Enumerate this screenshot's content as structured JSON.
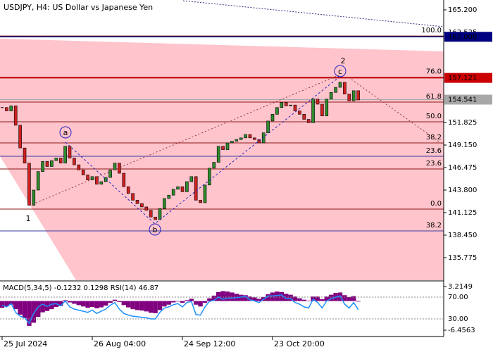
{
  "chart_data": {
    "type": "candlestick",
    "title": "USDJPY, H4:  US Dollar vs Japanese Yen",
    "up_color": "#2e8b2e",
    "down_color": "#d02020",
    "close": [
      153.6,
      153.2,
      153.8,
      151.5,
      148.8,
      147.0,
      142.0,
      143.8,
      146.0,
      147.2,
      146.6,
      147.3,
      147.6,
      147.0,
      149.0,
      147.6,
      146.8,
      146.2,
      145.6,
      145.0,
      145.4,
      144.5,
      144.8,
      145.3,
      146.2,
      147.0,
      145.8,
      144.2,
      143.4,
      142.6,
      142.2,
      141.8,
      141.4,
      140.6,
      140.3,
      141.6,
      142.8,
      143.2,
      143.9,
      144.2,
      143.6,
      144.8,
      145.4,
      142.6,
      142.3,
      144.4,
      146.4,
      147.1,
      149.0,
      148.6,
      149.4,
      149.6,
      149.8,
      150.0,
      150.4,
      150.0,
      149.8,
      149.4,
      150.6,
      152.0,
      152.8,
      153.6,
      154.2,
      153.8,
      153.9,
      153.2,
      152.8,
      152.2,
      151.8,
      154.6,
      154.0,
      152.6,
      154.6,
      155.4,
      156.0,
      156.6,
      155.2,
      154.4,
      155.6,
      154.5
    ],
    "xlim": [
      -0.47,
      97.97
    ],
    "xticks": [
      {
        "value": 0,
        "label": "25 Jul 2024"
      },
      {
        "value": 20,
        "label": "26 Aug 04:00"
      },
      {
        "value": 40,
        "label": "24 Sep 12:00"
      },
      {
        "value": 60,
        "label": "23 Oct 20:00"
      }
    ],
    "ylim": [
      133.1,
      166.37
    ],
    "yticks": [
      {
        "value": 165.2,
        "label": "165.200"
      },
      {
        "value": 162.525,
        "label": "162.525"
      },
      {
        "value": 151.825,
        "label": "151.825"
      },
      {
        "value": 149.15,
        "label": "149.150"
      },
      {
        "value": 146.475,
        "label": "146.475"
      },
      {
        "value": 143.8,
        "label": "143.800"
      },
      {
        "value": 141.125,
        "label": "141.125"
      },
      {
        "value": 138.45,
        "label": "138.450"
      },
      {
        "value": 135.775,
        "label": "135.775"
      }
    ],
    "price_lines": [
      {
        "value": 162.0,
        "label": "162.000",
        "color": "#000080"
      },
      {
        "value": 157.121,
        "label": "157.121",
        "color": "#cc0000"
      },
      {
        "value": 154.541,
        "label": "154.541",
        "color": "#a8a8a8"
      }
    ],
    "fib_levels": [
      {
        "value": 162.1,
        "label": "100.0",
        "color": "#8b1a1a"
      },
      {
        "value": 157.2,
        "label": "76.0",
        "color": "#8b1a1a"
      },
      {
        "value": 154.25,
        "label": "61.8",
        "color": "#8b1a1a"
      },
      {
        "value": 151.91,
        "label": "50.0",
        "color": "#8b1a1a"
      },
      {
        "value": 149.4,
        "label": "38.2",
        "color": "#8b1a1a"
      },
      {
        "value": 147.81,
        "label": "23.6",
        "color": "#3a3aa0"
      },
      {
        "value": 146.31,
        "label": "23.6",
        "color": "#8b1a1a"
      },
      {
        "value": 141.54,
        "label": "0.0",
        "color": "#8b1a1a"
      },
      {
        "value": 138.95,
        "label": "38.2",
        "color": "#3a3aa0"
      }
    ],
    "waves": [
      {
        "label": "1"
      },
      {
        "label": "a"
      },
      {
        "label": "b"
      },
      {
        "label": "c"
      },
      {
        "label": "2"
      }
    ],
    "indicator": {
      "label": "MACD(5,34,5) -0.1232 0.1298 RSI(14) 46.87",
      "macd_color": "#800080",
      "rsi_color": "#1e90ff",
      "macd": [
        -1.5,
        -1.2,
        -0.8,
        -1.8,
        -3.0,
        -3.8,
        -5.5,
        -4.8,
        -3.5,
        -2.5,
        -2.2,
        -1.8,
        -1.3,
        -1.1,
        0.2,
        -0.3,
        -0.6,
        -0.9,
        -1.2,
        -1.5,
        -1.3,
        -1.6,
        -1.4,
        -1.0,
        -0.4,
        0.3,
        -0.2,
        -0.9,
        -1.4,
        -1.8,
        -2.0,
        -2.1,
        -2.3,
        -2.6,
        -2.7,
        -2.0,
        -1.2,
        -0.8,
        -0.3,
        -0.1,
        -0.4,
        0.2,
        0.5,
        -0.8,
        -1.2,
        -0.4,
        0.6,
        1.2,
        2.0,
        2.2,
        2.1,
        1.9,
        1.6,
        1.4,
        1.3,
        1.0,
        0.8,
        0.5,
        0.9,
        1.5,
        1.9,
        2.1,
        2.0,
        1.6,
        1.4,
        1.0,
        0.6,
        0.3,
        0.1,
        1.0,
        1.0,
        0.4,
        1.0,
        1.4,
        1.8,
        1.9,
        1.3,
        0.9,
        1.1,
        -0.12
      ],
      "rsi": [
        55,
        52,
        58,
        42,
        35,
        32,
        22,
        40,
        52,
        57,
        53,
        57,
        58,
        54,
        63,
        52,
        48,
        46,
        44,
        42,
        46,
        40,
        44,
        48,
        55,
        60,
        48,
        40,
        37,
        35,
        34,
        33,
        32,
        30,
        30,
        42,
        50,
        52,
        56,
        58,
        52,
        60,
        62,
        38,
        37,
        52,
        62,
        64,
        70,
        66,
        68,
        68,
        69,
        70,
        71,
        65,
        63,
        60,
        66,
        72,
        72,
        73,
        74,
        67,
        67,
        60,
        57,
        52,
        50,
        66,
        60,
        50,
        63,
        67,
        70,
        72,
        57,
        50,
        60,
        47
      ],
      "macd_lim": [
        -7.86,
        4.31
      ],
      "macd_ticks": [
        3.2149,
        -6.4563
      ],
      "rsi_lim": [
        -2.3,
        98.4
      ],
      "rsi_ticks": [
        {
          "value": 70,
          "label": "70.00"
        },
        {
          "value": 30,
          "label": "30.00"
        }
      ]
    }
  }
}
